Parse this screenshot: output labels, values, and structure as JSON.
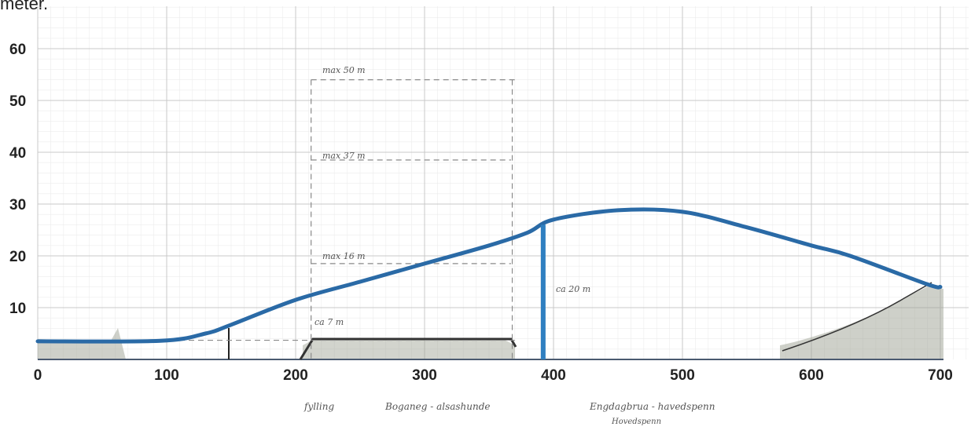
{
  "corner_text": "meter.",
  "x_ticks": [
    "0",
    "100",
    "200",
    "300",
    "400",
    "500",
    "600",
    "700"
  ],
  "y_ticks": [
    "10",
    "20",
    "30",
    "40",
    "50",
    "60"
  ],
  "annotations": {
    "max50": "max 50 m",
    "max37": "max 37 m",
    "max16": "max 16 m",
    "ca7": "ca 7 m",
    "ca20": "ca 20 m"
  },
  "bottom_labels": {
    "fylling": "fylling",
    "boganeg": "Boganeg - alsashunde",
    "engdagbru": "Engdagbrua - havedspenn",
    "second_line": "Hovedspenn"
  },
  "colors": {
    "road_line": "#2a6aa6",
    "pier": "#2f7fc0",
    "grid": "#c9c9c9",
    "dashed": "#8a8a8a",
    "terrain": "#8f9484"
  },
  "profile": {
    "x": [
      0,
      95,
      130,
      150,
      200,
      250,
      300,
      350,
      380,
      400,
      450,
      500,
      550,
      600,
      630,
      690,
      700
    ],
    "y": [
      3.5,
      3.6,
      5,
      6.7,
      11.5,
      15,
      18.5,
      22,
      24.5,
      27,
      28.8,
      28.5,
      25.5,
      22,
      20,
      14.5,
      14
    ]
  },
  "pier_x": 392,
  "pier_top": 26
}
